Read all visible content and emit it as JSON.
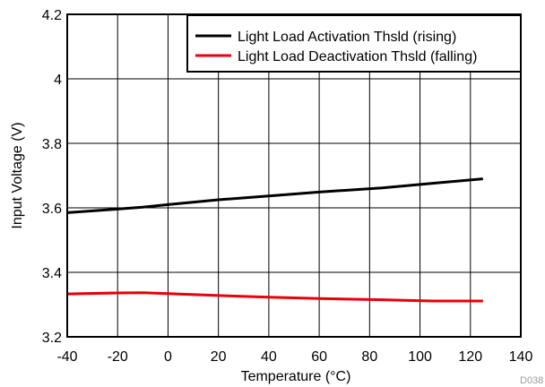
{
  "chart_data": {
    "type": "line",
    "title": "",
    "xlabel": "Temperature (°C)",
    "ylabel": "Input Voltage (V)",
    "xlim": [
      -40,
      140
    ],
    "ylim": [
      3.2,
      4.2
    ],
    "x_ticks": [
      -40,
      -20,
      0,
      20,
      40,
      60,
      80,
      100,
      120,
      140
    ],
    "y_ticks": [
      3.2,
      3.4,
      3.6,
      3.8,
      4.0,
      4.2
    ],
    "y_tick_labels": [
      "3.2",
      "3.4",
      "3.6",
      "3.8",
      "4",
      "4.2"
    ],
    "grid": true,
    "legend_position": "top-right",
    "series": [
      {
        "name": "Light Load Activation Thsld (rising)",
        "color": "#000000",
        "x": [
          -40,
          -20,
          -10,
          0,
          20,
          40,
          60,
          85,
          105,
          125
        ],
        "y": [
          3.585,
          3.596,
          3.602,
          3.61,
          3.625,
          3.637,
          3.649,
          3.662,
          3.676,
          3.69
        ]
      },
      {
        "name": "Light Load Deactivation Thsld (falling)",
        "color": "#e8000b",
        "x": [
          -40,
          -20,
          -10,
          0,
          20,
          40,
          60,
          85,
          105,
          125
        ],
        "y": [
          3.333,
          3.336,
          3.337,
          3.334,
          3.328,
          3.323,
          3.319,
          3.315,
          3.311,
          3.311
        ]
      }
    ],
    "figure_code": "D038"
  }
}
